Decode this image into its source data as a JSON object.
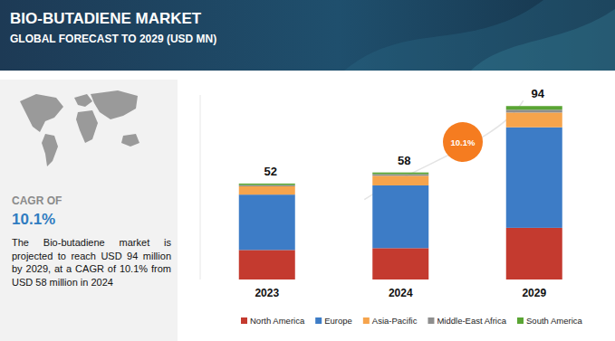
{
  "chart_data": {
    "type": "bar",
    "stacked": true,
    "title": "BIO-BUTADIENE MARKET",
    "subtitle": "GLOBAL FORECAST TO 2029 (USD MN)",
    "annotations": [
      "CAGR OF",
      "10.1%",
      "The Bio-butadiene market is projected to reach USD 94 million by 2029, at a CAGR of 10.1% from USD 58 million in 2024",
      "10.1%"
    ],
    "categories": [
      "2023",
      "2024",
      "2029"
    ],
    "totals": [
      52,
      58,
      94
    ],
    "series": [
      {
        "name": "North America",
        "color": "#c43a2f",
        "values": [
          16,
          17,
          28
        ]
      },
      {
        "name": "Europe",
        "color": "#3d7cc6",
        "values": [
          30,
          34,
          54.5
        ]
      },
      {
        "name": "Asia-Pacific",
        "color": "#f6a44c",
        "values": [
          4.5,
          5.2,
          8
        ]
      },
      {
        "name": "Middle-East Africa",
        "color": "#8e8e8e",
        "values": [
          0.7,
          0.9,
          1.5
        ]
      },
      {
        "name": "South America",
        "color": "#5aa534",
        "values": [
          0.8,
          0.9,
          2
        ]
      }
    ],
    "ylim": [
      0,
      100
    ],
    "tick_labels": "x",
    "legend": "bottom",
    "grid": false
  }
}
